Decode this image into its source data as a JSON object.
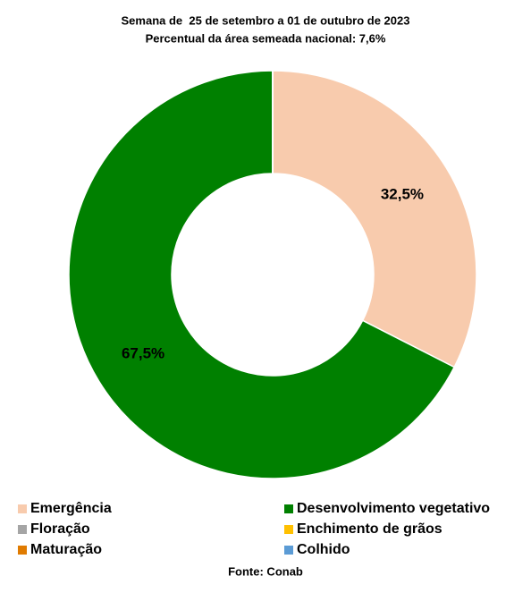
{
  "chart_data": {
    "type": "donut",
    "title": "Semana de  25 de setembro a 01 de outubro de 2023",
    "subtitle": "Percentual da área semeada nacional: 7,6%",
    "source": "Fonte: Conab",
    "categories": [
      "Emergência",
      "Desenvolvimento vegetativo",
      "Floração",
      "Enchimento de grãos",
      "Maturação",
      "Colhido"
    ],
    "values": [
      32.5,
      67.5,
      0,
      0,
      0,
      0
    ],
    "value_labels": [
      "32,5%",
      "67,5%",
      null,
      null,
      null,
      null
    ],
    "colors": [
      "#f8cbad",
      "#008000",
      "#a5a5a5",
      "#ffc000",
      "#e07b00",
      "#5b9bd5"
    ]
  }
}
